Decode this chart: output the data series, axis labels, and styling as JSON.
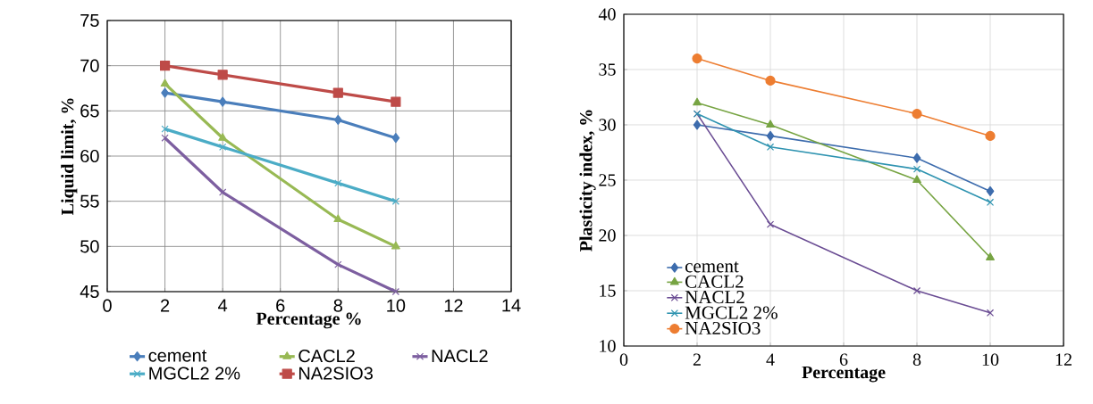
{
  "chart_data": [
    {
      "type": "line",
      "xlabel": "Percentage %",
      "ylabel": "Liquid limit, %",
      "x": [
        2,
        4,
        8,
        10
      ],
      "xlim": [
        0,
        14
      ],
      "xticks": [
        0,
        2,
        4,
        6,
        8,
        10,
        12,
        14
      ],
      "ylim": [
        45,
        75
      ],
      "yticks": [
        45,
        50,
        55,
        60,
        65,
        70,
        75
      ],
      "grid": true,
      "legend": "bottom",
      "series": [
        {
          "name": "cement",
          "color": "#4a7ebb",
          "marker": "diamond",
          "values": [
            67,
            66,
            64,
            62
          ]
        },
        {
          "name": "CACL2",
          "color": "#98b954",
          "marker": "triangle",
          "values": [
            68,
            62,
            53,
            50
          ]
        },
        {
          "name": "NACL2",
          "color": "#7d5fa0",
          "marker": "cross",
          "values": [
            62,
            56,
            48,
            45
          ]
        },
        {
          "name": "MGCL2 2%",
          "color": "#4bacc6",
          "marker": "cross",
          "values": [
            63,
            61,
            57,
            55
          ]
        },
        {
          "name": "NA2SIO3",
          "color": "#be4b48",
          "marker": "square",
          "values": [
            70,
            69,
            67,
            66
          ]
        }
      ]
    },
    {
      "type": "line",
      "xlabel": "Percentage",
      "ylabel": "Plasticity index, %",
      "x": [
        2,
        4,
        8,
        10
      ],
      "xlim": [
        0,
        12
      ],
      "xticks": [
        0,
        2,
        4,
        6,
        8,
        10,
        12
      ],
      "ylim": [
        10,
        40
      ],
      "yticks": [
        10,
        15,
        20,
        25,
        30,
        35,
        40
      ],
      "grid": true,
      "legend": "bottom left",
      "series": [
        {
          "name": "cement",
          "color": "#3d6cad",
          "marker": "diamond",
          "values": [
            30,
            29,
            27,
            24
          ]
        },
        {
          "name": "CACL2",
          "color": "#77a443",
          "marker": "triangle",
          "values": [
            32,
            30,
            25,
            18
          ]
        },
        {
          "name": "NACL2",
          "color": "#6a4c93",
          "marker": "cross",
          "values": [
            31,
            21,
            15,
            13
          ]
        },
        {
          "name": "MGCL2 2%",
          "color": "#2e93b0",
          "marker": "cross",
          "values": [
            31,
            28,
            26,
            23
          ]
        },
        {
          "name": "NA2SIO3",
          "color": "#ed7d31",
          "marker": "circle",
          "values": [
            36,
            34,
            31,
            29
          ]
        }
      ]
    }
  ]
}
